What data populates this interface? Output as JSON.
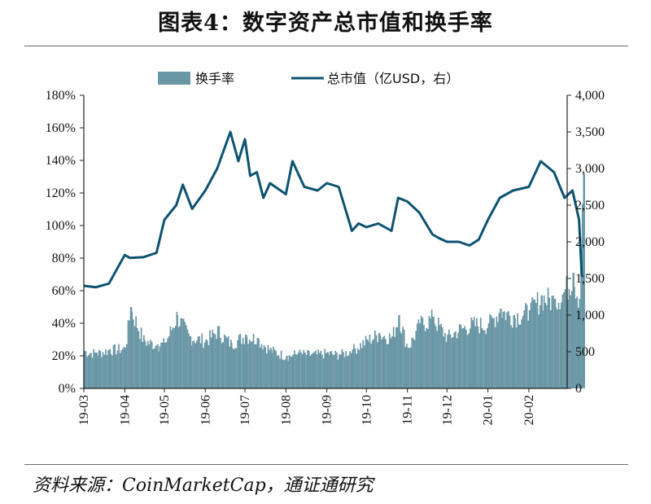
{
  "header": {
    "title": "图表4：数字资产总市值和换手率"
  },
  "footer": {
    "source": "资料来源：CoinMarketCap，通证通研究"
  },
  "colors": {
    "bar": "#6a97a6",
    "line": "#0d5370",
    "axis": "#222222"
  },
  "chart_data": {
    "type": "bar+line",
    "title": "图表4：数字资产总市值和换手率",
    "x": {
      "tick_labels": [
        "19-03",
        "19-04",
        "19-05",
        "19-06",
        "19-07",
        "19-08",
        "19-09",
        "19-10",
        "19-11",
        "19-12",
        "20-01",
        "20-02"
      ],
      "range": [
        "19-03",
        "20-03"
      ]
    },
    "y_left": {
      "range": [
        0,
        180
      ],
      "unit": "%",
      "tick_labels": [
        "0%",
        "20%",
        "40%",
        "60%",
        "80%",
        "100%",
        "120%",
        "140%",
        "160%",
        "180%"
      ]
    },
    "y_right": {
      "range": [
        0,
        4000
      ],
      "tick_labels": [
        "0",
        "500",
        "1,000",
        "1,500",
        "2,000",
        "2,500",
        "3,000",
        "3,500",
        "4,000"
      ]
    },
    "legend": {
      "placement": "top",
      "entries": [
        "换手率",
        "总市值（亿USD，右）"
      ]
    },
    "series": [
      {
        "name": "换手率",
        "type": "bar",
        "axis": "left",
        "x": [
          "19-03-01",
          "19-03-10",
          "19-03-20",
          "19-04-01",
          "19-04-05",
          "19-04-15",
          "19-04-25",
          "19-05-01",
          "19-05-10",
          "19-05-20",
          "19-06-01",
          "19-06-10",
          "19-06-20",
          "19-07-01",
          "19-07-10",
          "19-07-20",
          "19-08-01",
          "19-08-10",
          "19-08-20",
          "19-09-01",
          "19-09-10",
          "19-09-20",
          "19-10-01",
          "19-10-10",
          "19-10-20",
          "19-10-25",
          "19-11-01",
          "19-11-10",
          "19-11-20",
          "19-12-01",
          "19-12-10",
          "19-12-20",
          "20-01-01",
          "20-01-10",
          "20-01-20",
          "20-02-01",
          "20-02-10",
          "20-02-20",
          "20-02-28",
          "20-03-05",
          "20-03-10",
          "20-03-13"
        ],
        "values": [
          23,
          22,
          24,
          25,
          50,
          30,
          27,
          28,
          45,
          32,
          30,
          36,
          28,
          33,
          31,
          24,
          20,
          22,
          21,
          22,
          21,
          24,
          30,
          34,
          32,
          45,
          25,
          40,
          44,
          32,
          37,
          40,
          40,
          49,
          45,
          48,
          57,
          55,
          61,
          71,
          55,
          132
        ]
      },
      {
        "name": "总市值（亿USD，右）",
        "type": "line",
        "axis": "right",
        "x": [
          "19-03-01",
          "19-03-10",
          "19-03-20",
          "19-04-01",
          "19-04-05",
          "19-04-15",
          "19-04-25",
          "19-05-01",
          "19-05-10",
          "19-05-15",
          "19-05-22",
          "19-06-01",
          "19-06-10",
          "19-06-20",
          "19-06-26",
          "19-07-01",
          "19-07-05",
          "19-07-10",
          "19-07-15",
          "19-07-20",
          "19-08-01",
          "19-08-06",
          "19-08-15",
          "19-08-25",
          "19-09-01",
          "19-09-10",
          "19-09-20",
          "19-09-25",
          "19-10-01",
          "19-10-10",
          "19-10-20",
          "19-10-25",
          "19-11-01",
          "19-11-10",
          "19-11-20",
          "19-11-25",
          "19-12-01",
          "19-12-10",
          "19-12-18",
          "19-12-25",
          "20-01-01",
          "20-01-10",
          "20-01-20",
          "20-02-01",
          "20-02-10",
          "20-02-20",
          "20-02-28",
          "20-03-05",
          "20-03-10",
          "20-03-12",
          "20-03-13"
        ],
        "values": [
          1400,
          1380,
          1430,
          1820,
          1780,
          1790,
          1850,
          2300,
          2500,
          2780,
          2450,
          2700,
          3000,
          3500,
          3100,
          3400,
          2900,
          2950,
          2600,
          2800,
          2650,
          3100,
          2750,
          2700,
          2800,
          2750,
          2150,
          2250,
          2200,
          2250,
          2150,
          2600,
          2550,
          2400,
          2100,
          2050,
          2000,
          2000,
          1950,
          2030,
          2300,
          2600,
          2700,
          2750,
          3100,
          2950,
          2600,
          2700,
          2300,
          1550,
          1520
        ]
      }
    ]
  }
}
